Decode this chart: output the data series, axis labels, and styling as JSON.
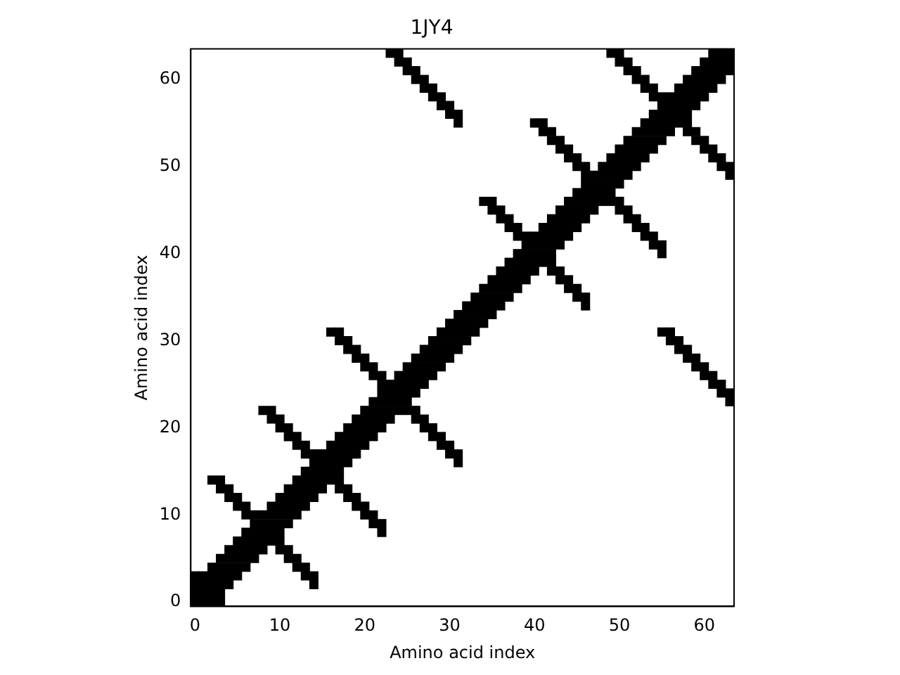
{
  "chart_data": {
    "type": "scatter",
    "title": "1JY4",
    "xlabel": "Amino acid index",
    "ylabel": "Amino acid index",
    "color": "#000000",
    "marker": "square",
    "xlim": [
      -0.5,
      63.5
    ],
    "ylim": [
      -0.5,
      63.5
    ],
    "xticks": [
      0,
      10,
      20,
      30,
      40,
      50,
      60
    ],
    "yticks": [
      0,
      10,
      20,
      30,
      40,
      50,
      60
    ],
    "x": [
      0,
      0,
      0,
      0,
      1,
      1,
      1,
      1,
      2,
      2,
      2,
      2,
      2,
      2,
      3,
      3,
      3,
      3,
      3,
      3,
      3,
      3,
      4,
      4,
      4,
      4,
      4,
      4,
      4,
      5,
      5,
      5,
      5,
      5,
      5,
      5,
      6,
      6,
      6,
      6,
      6,
      6,
      6,
      7,
      7,
      7,
      7,
      7,
      7,
      8,
      8,
      8,
      8,
      8,
      8,
      9,
      9,
      9,
      9,
      9,
      9,
      9,
      10,
      10,
      10,
      10,
      10,
      10,
      10,
      10,
      10,
      11,
      11,
      11,
      11,
      11,
      11,
      11,
      11,
      11,
      12,
      12,
      12,
      12,
      12,
      12,
      12,
      12,
      12,
      13,
      13,
      13,
      13,
      13,
      13,
      13,
      13,
      13,
      14,
      14,
      14,
      14,
      14,
      14,
      14,
      14,
      15,
      15,
      15,
      15,
      15,
      16,
      16,
      16,
      16,
      16,
      16,
      17,
      17,
      17,
      17,
      17,
      17,
      17,
      17,
      17,
      18,
      18,
      18,
      18,
      18,
      18,
      18,
      18,
      18,
      19,
      19,
      19,
      19,
      19,
      19,
      19,
      19,
      19,
      20,
      20,
      20,
      20,
      20,
      20,
      20,
      20,
      20,
      21,
      21,
      21,
      21,
      21,
      21,
      21,
      21,
      21,
      22,
      22,
      22,
      22,
      22,
      22,
      22,
      22,
      22,
      23,
      23,
      23,
      23,
      23,
      23,
      24,
      24,
      24,
      24,
      24,
      24,
      24,
      25,
      25,
      25,
      25,
      25,
      25,
      25,
      25,
      26,
      26,
      26,
      26,
      26,
      26,
      26,
      26,
      26,
      27,
      27,
      27,
      27,
      27,
      27,
      27,
      27,
      27,
      28,
      28,
      28,
      28,
      28,
      28,
      28,
      28,
      28,
      29,
      29,
      29,
      29,
      29,
      29,
      29,
      29,
      29,
      30,
      30,
      30,
      30,
      30,
      30,
      30,
      30,
      30,
      31,
      31,
      31,
      31,
      31,
      31,
      31,
      31,
      31,
      32,
      32,
      32,
      32,
      32,
      33,
      33,
      33,
      33,
      33,
      34,
      34,
      34,
      34,
      34,
      34,
      35,
      35,
      35,
      35,
      35,
      35,
      35,
      36,
      36,
      36,
      36,
      36,
      36,
      36,
      37,
      37,
      37,
      37,
      37,
      37,
      37,
      38,
      38,
      38,
      38,
      38,
      38,
      38,
      39,
      39,
      39,
      39,
      39,
      39,
      40,
      40,
      40,
      40,
      40,
      40,
      41,
      41,
      41,
      41,
      41,
      41,
      41,
      42,
      42,
      42,
      42,
      42,
      42,
      42,
      42,
      42,
      43,
      43,
      43,
      43,
      43,
      43,
      43,
      43,
      43,
      44,
      44,
      44,
      44,
      44,
      44,
      44,
      44,
      44,
      45,
      45,
      45,
      45,
      45,
      45,
      45,
      45,
      45,
      46,
      46,
      46,
      46,
      46,
      46,
      46,
      46,
      46,
      47,
      47,
      47,
      47,
      47,
      48,
      48,
      48,
      48,
      48,
      49,
      49,
      49,
      49,
      49,
      49,
      49,
      50,
      50,
      50,
      50,
      50,
      50,
      50,
      50,
      50,
      51,
      51,
      51,
      51,
      51,
      51,
      51,
      51,
      51,
      52,
      52,
      52,
      52,
      52,
      52,
      52,
      52,
      52,
      53,
      53,
      53,
      53,
      53,
      53,
      53,
      53,
      53,
      54,
      54,
      54,
      54,
      54,
      54,
      54,
      54,
      54,
      55,
      55,
      55,
      55,
      55,
      55,
      55,
      55,
      55,
      56,
      56,
      56,
      56,
      56,
      56,
      56,
      57,
      57,
      57,
      57,
      57,
      57,
      57,
      58,
      58,
      58,
      58,
      58,
      58,
      58,
      58,
      58,
      59,
      59,
      59,
      59,
      59,
      59,
      59,
      59,
      59,
      60,
      60,
      60,
      60,
      60,
      60,
      60,
      60,
      60,
      61,
      61,
      61,
      61,
      61,
      61,
      61,
      61,
      61,
      62,
      62,
      62,
      62,
      62,
      62,
      62,
      62,
      63,
      63,
      63,
      63,
      63,
      63,
      63
    ],
    "values": [
      0,
      1,
      2,
      3,
      0,
      1,
      2,
      3,
      0,
      1,
      2,
      3,
      4,
      14,
      0,
      1,
      2,
      3,
      4,
      5,
      13,
      14,
      2,
      3,
      4,
      5,
      6,
      12,
      13,
      3,
      4,
      5,
      6,
      7,
      11,
      12,
      4,
      5,
      6,
      7,
      8,
      10,
      11,
      5,
      6,
      7,
      8,
      9,
      10,
      6,
      7,
      8,
      9,
      10,
      22,
      7,
      8,
      9,
      10,
      11,
      21,
      22,
      6,
      7,
      8,
      9,
      10,
      11,
      12,
      20,
      21,
      5,
      6,
      9,
      10,
      11,
      12,
      13,
      19,
      20,
      4,
      5,
      10,
      11,
      12,
      13,
      14,
      18,
      19,
      3,
      4,
      11,
      12,
      13,
      14,
      15,
      17,
      18,
      2,
      3,
      12,
      13,
      14,
      15,
      16,
      17,
      13,
      14,
      15,
      16,
      17,
      14,
      15,
      16,
      17,
      18,
      31,
      13,
      14,
      15,
      16,
      17,
      18,
      19,
      30,
      31,
      12,
      13,
      16,
      17,
      18,
      19,
      20,
      29,
      30,
      11,
      12,
      17,
      18,
      19,
      20,
      21,
      28,
      29,
      10,
      11,
      18,
      19,
      20,
      21,
      22,
      27,
      28,
      9,
      10,
      19,
      20,
      21,
      22,
      23,
      26,
      27,
      8,
      9,
      20,
      21,
      22,
      23,
      24,
      25,
      26,
      21,
      22,
      23,
      24,
      25,
      63,
      22,
      23,
      24,
      25,
      26,
      62,
      63,
      22,
      23,
      24,
      25,
      26,
      27,
      61,
      62,
      21,
      22,
      24,
      25,
      26,
      27,
      28,
      60,
      61,
      20,
      21,
      25,
      26,
      27,
      28,
      29,
      59,
      60,
      19,
      20,
      26,
      27,
      28,
      29,
      30,
      58,
      59,
      18,
      19,
      27,
      28,
      29,
      30,
      31,
      57,
      58,
      17,
      18,
      28,
      29,
      30,
      31,
      32,
      56,
      57,
      16,
      17,
      29,
      30,
      31,
      32,
      33,
      55,
      56,
      30,
      31,
      32,
      33,
      34,
      31,
      32,
      33,
      34,
      35,
      32,
      33,
      34,
      35,
      36,
      46,
      33,
      34,
      35,
      36,
      37,
      45,
      46,
      34,
      35,
      36,
      37,
      38,
      44,
      45,
      35,
      36,
      37,
      38,
      39,
      43,
      44,
      36,
      37,
      38,
      39,
      40,
      42,
      43,
      37,
      38,
      39,
      40,
      41,
      42,
      38,
      39,
      40,
      41,
      42,
      55,
      39,
      40,
      41,
      42,
      43,
      54,
      55,
      38,
      39,
      40,
      41,
      42,
      43,
      44,
      53,
      54,
      37,
      38,
      41,
      42,
      43,
      44,
      45,
      52,
      53,
      36,
      37,
      42,
      43,
      44,
      45,
      46,
      51,
      52,
      35,
      36,
      43,
      44,
      45,
      46,
      47,
      50,
      51,
      34,
      35,
      44,
      45,
      46,
      47,
      48,
      49,
      50,
      45,
      46,
      47,
      48,
      49,
      46,
      47,
      48,
      49,
      50,
      46,
      47,
      48,
      49,
      50,
      51,
      63,
      45,
      46,
      48,
      49,
      50,
      51,
      52,
      62,
      63,
      44,
      45,
      49,
      50,
      51,
      52,
      53,
      61,
      62,
      43,
      44,
      50,
      51,
      52,
      53,
      54,
      60,
      61,
      42,
      43,
      51,
      52,
      53,
      54,
      55,
      59,
      60,
      41,
      42,
      52,
      53,
      54,
      55,
      56,
      58,
      59,
      31,
      40,
      41,
      53,
      54,
      55,
      56,
      57,
      58,
      30,
      31,
      54,
      55,
      56,
      57,
      58,
      29,
      30,
      55,
      56,
      57,
      58,
      59,
      28,
      29,
      54,
      55,
      56,
      57,
      58,
      59,
      60,
      27,
      28,
      53,
      54,
      57,
      58,
      59,
      60,
      61,
      26,
      27,
      52,
      53,
      58,
      59,
      60,
      61,
      62,
      25,
      26,
      51,
      52,
      59,
      60,
      61,
      62,
      63,
      24,
      25,
      50,
      51,
      60,
      61,
      62,
      63,
      23,
      24,
      49,
      50,
      61,
      62,
      63
    ]
  }
}
